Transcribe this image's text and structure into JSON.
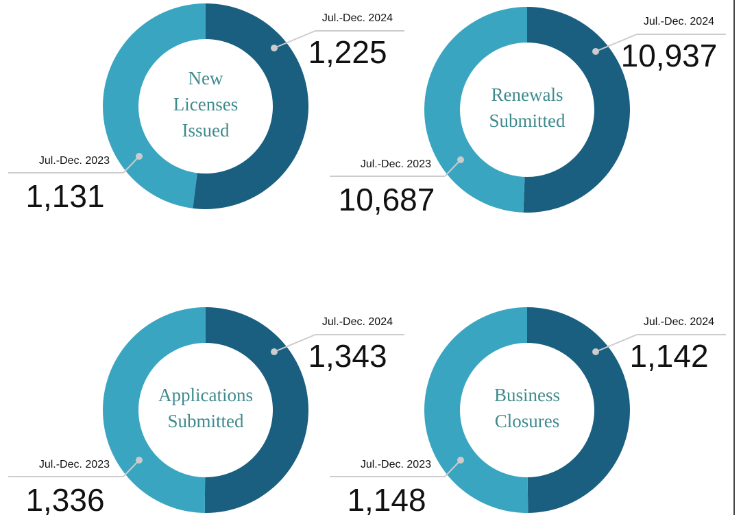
{
  "chart_data": [
    {
      "type": "donut",
      "title": "New Licenses Issued",
      "categories": [
        "Jul.-Dec. 2024",
        "Jul.-Dec. 2023"
      ],
      "values": [
        1225,
        1131
      ],
      "value_labels": [
        "1,225",
        "1,131"
      ],
      "colors": [
        "#1a5f80",
        "#3aa5c0"
      ]
    },
    {
      "type": "donut",
      "title": "Renewals Submitted",
      "categories": [
        "Jul.-Dec. 2024",
        "Jul.-Dec. 2023"
      ],
      "values": [
        10937,
        10687
      ],
      "value_labels": [
        "10,937",
        "10,687"
      ],
      "colors": [
        "#1a5f80",
        "#3aa5c0"
      ]
    },
    {
      "type": "donut",
      "title": "Applications Submitted",
      "categories": [
        "Jul.-Dec. 2024",
        "Jul.-Dec. 2023"
      ],
      "values": [
        1343,
        1336
      ],
      "value_labels": [
        "1,343",
        "1,336"
      ],
      "colors": [
        "#1a5f80",
        "#3aa5c0"
      ]
    },
    {
      "type": "donut",
      "title": "Business Closures",
      "categories": [
        "Jul.-Dec. 2024",
        "Jul.-Dec. 2023"
      ],
      "values": [
        1142,
        1148
      ],
      "value_labels": [
        "1,142",
        "1,148"
      ],
      "colors": [
        "#1a5f80",
        "#3aa5c0"
      ]
    }
  ]
}
